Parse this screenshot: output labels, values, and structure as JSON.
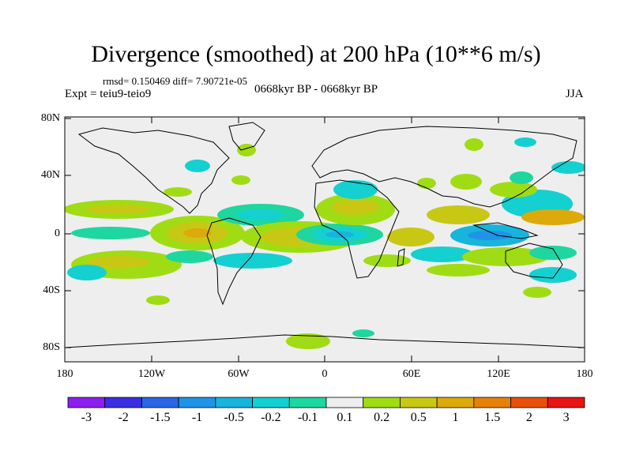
{
  "title": "Divergence (smoothed) at 200 hPa (10**6 m/s)",
  "stats": "rmsd= 0.150469  diff= 7.90721e-05",
  "expt": "Expt = teiu9-teio9",
  "period": "0668kyr BP - 0668kyr BP",
  "season": "JJA",
  "lat_labels": [
    "80N",
    "40N",
    "0",
    "40S",
    "80S"
  ],
  "lon_labels": [
    "180",
    "120W",
    "60W",
    "0",
    "60E",
    "120E",
    "180"
  ],
  "colorbar": {
    "labels": [
      "-3",
      "-2",
      "-1.5",
      "-1",
      "-0.5",
      "-0.2",
      "-0.1",
      "0.1",
      "0.2",
      "0.5",
      "1",
      "1.5",
      "2",
      "3"
    ],
    "colors": [
      "#8c1eee",
      "#3a2ee0",
      "#2a66e6",
      "#1f94e6",
      "#17b4dc",
      "#14d0d0",
      "#1ed6a0",
      "#eeeeee",
      "#a0dc14",
      "#c8c814",
      "#dcaa0a",
      "#e6820a",
      "#e6500a",
      "#e61414"
    ]
  },
  "colors": {
    "background": "#eeeeee",
    "coast": "#000000"
  }
}
